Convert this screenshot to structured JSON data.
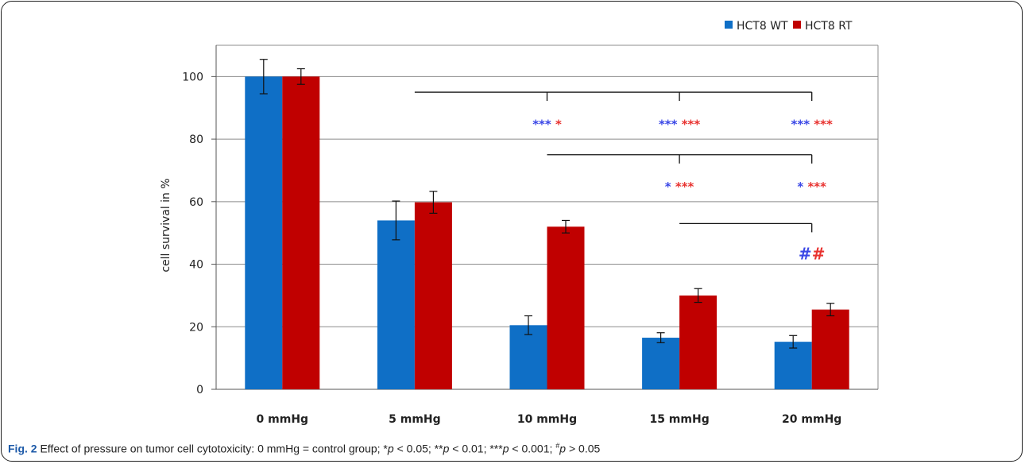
{
  "chart_data": {
    "type": "bar",
    "categories": [
      "0 mmHg",
      "5 mmHg",
      "10 mmHg",
      "15 mmHg",
      "20 mmHg"
    ],
    "series": [
      {
        "name": "HCT8 WT",
        "color": "#0f6fc6",
        "values": [
          100,
          54,
          20.5,
          16.5,
          15.2
        ],
        "errors": [
          5.5,
          6.2,
          3.0,
          1.6,
          2.0
        ]
      },
      {
        "name": "HCT8 RT",
        "color": "#c00000",
        "values": [
          100,
          59.8,
          52,
          30,
          25.5
        ],
        "errors": [
          2.5,
          3.5,
          2.0,
          2.2,
          2.0
        ]
      }
    ],
    "ylabel": "cell survival in %",
    "ylim": [
      0,
      110
    ],
    "yticks": [
      0,
      20,
      40,
      60,
      80,
      100
    ],
    "ytick_labels": [
      "0",
      "20",
      "40",
      "60",
      "80",
      "100"
    ],
    "grid": true,
    "legend": "top-right",
    "significance_brackets": [
      {
        "from": "5 mmHg",
        "to": [
          "10 mmHg",
          "15 mmHg",
          "20 mmHg"
        ],
        "y": 95
      },
      {
        "from": "10 mmHg",
        "to": [
          "15 mmHg",
          "20 mmHg"
        ],
        "y": 75
      },
      {
        "from": "15 mmHg",
        "to": [
          "20 mmHg"
        ],
        "y": 53
      }
    ],
    "annotations": [
      {
        "category": "10 mmHg",
        "y": 85,
        "wt": "***",
        "rt": "*"
      },
      {
        "category": "15 mmHg",
        "y": 85,
        "wt": "***",
        "rt": "***"
      },
      {
        "category": "20 mmHg",
        "y": 85,
        "wt": "***",
        "rt": "***"
      },
      {
        "category": "15 mmHg",
        "y": 65,
        "wt": "*",
        "rt": "***"
      },
      {
        "category": "20 mmHg",
        "y": 65,
        "wt": "*",
        "rt": "***"
      },
      {
        "category": "20 mmHg",
        "y": 43,
        "wt": "#",
        "rt": "#"
      }
    ],
    "annotation_colors": {
      "wt": "#3a47e6",
      "rt": "#e8322f"
    }
  },
  "caption": {
    "fig_label": "Fig. 2",
    "p1_text": " Effect of pressure on tumor cell cytotoxicity: 0 mmHg = control group; *",
    "p": "p",
    "p1_cmp": " < 0.05; **",
    "p2_cmp": " < 0.01; ***",
    "p3_cmp": " < 0.001; ",
    "hash": "#",
    "p4_cmp": " > 0.05"
  }
}
